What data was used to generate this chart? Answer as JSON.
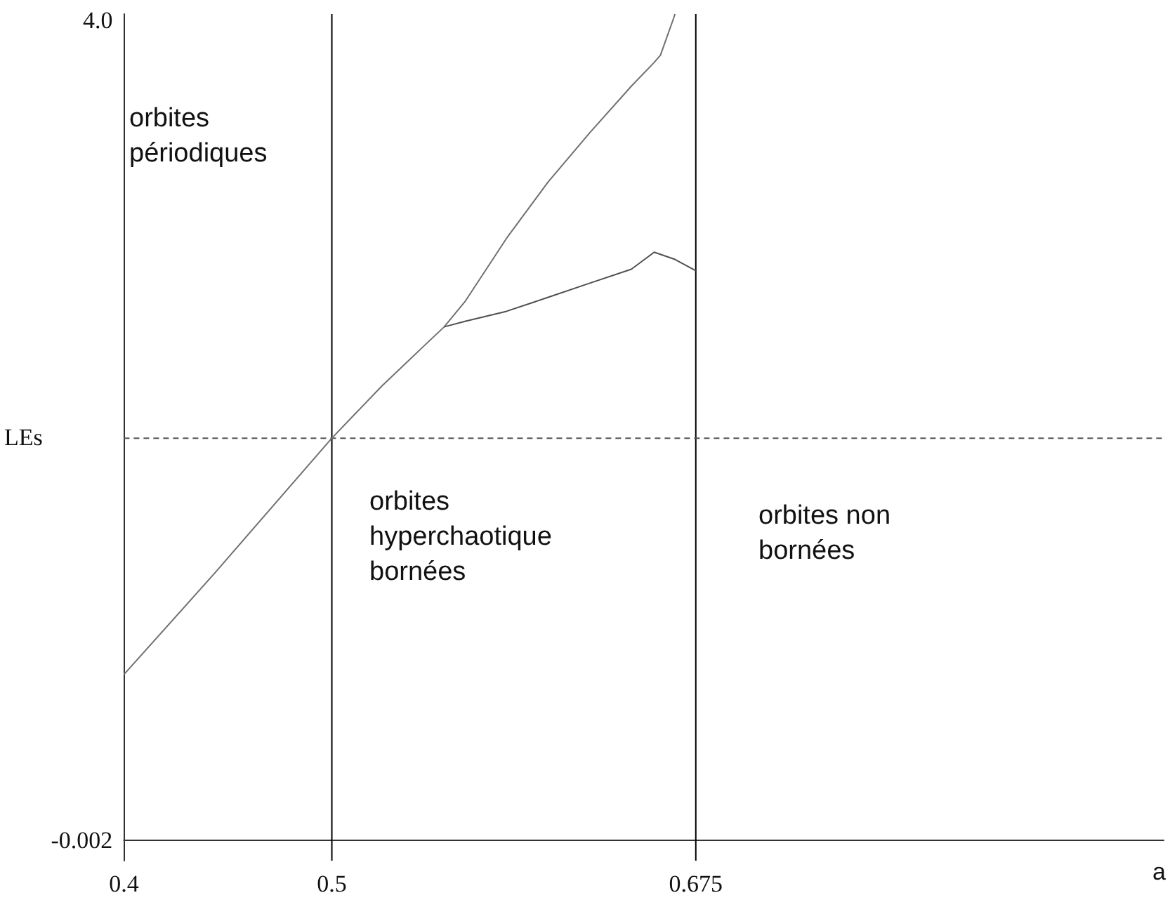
{
  "chart_data": {
    "type": "line",
    "xlabel": "a",
    "ylabel": "LEs",
    "xlim": [
      0.4,
      0.9
    ],
    "xticks": [
      0.4,
      0.5,
      0.675
    ],
    "ylim": [
      -0.1,
      4.03
    ],
    "yticks": [
      -0.002,
      {
        "value": 4.0,
        "label": "4.0"
      }
    ],
    "grid": false,
    "marker": "none",
    "line_style": "solid",
    "series": [
      {
        "color": "#707070",
        "x": [
          0.4,
          0.4436,
          0.5,
          0.524,
          0.544,
          0.554,
          0.564,
          0.584,
          0.604,
          0.624,
          0.644,
          0.655,
          0.658,
          0.664,
          0.665
        ],
        "values": [
          0.808,
          1.302,
          1.961,
          2.215,
          2.408,
          2.504,
          2.627,
          2.936,
          3.211,
          3.451,
          3.678,
          3.794,
          3.829,
          4.0,
          4.03
        ]
      },
      {
        "color": "#505050",
        "x": [
          0.554,
          0.564,
          0.584,
          0.604,
          0.624,
          0.644,
          0.655,
          0.665,
          0.675
        ],
        "values": [
          2.504,
          2.531,
          2.58,
          2.648,
          2.717,
          2.785,
          2.868,
          2.833,
          2.778
        ]
      }
    ],
    "ref_lines": [
      {
        "axis": "x",
        "value": 0.5,
        "color": "#000000",
        "line_style": "solid"
      },
      {
        "axis": "x",
        "value": 0.675,
        "color": "#000000",
        "line_style": "solid"
      },
      {
        "axis": "y",
        "value": 1.961,
        "color": "#555555",
        "line_style": "dashed"
      }
    ],
    "annotations": [
      "orbites\npériodiques",
      "orbites\nhyperchaotique\nbornées",
      "orbites non\nbornées"
    ]
  }
}
